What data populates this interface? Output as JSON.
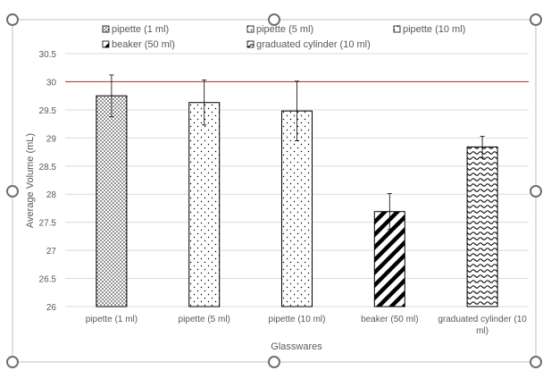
{
  "chart_data": {
    "type": "bar",
    "xlabel": "Glasswares",
    "ylabel": "Average Volume (mL)",
    "categories": [
      "pipette (1 ml)",
      "pipette (5 ml)",
      "pipette (10 ml)",
      "beaker (50 ml)",
      "graduated cylinder (10 ml)"
    ],
    "category_tick_labels": [
      [
        "pipette (1 ml)"
      ],
      [
        "pipette (5 ml)"
      ],
      [
        "pipette (10 ml)"
      ],
      [
        "beaker (50 ml)"
      ],
      [
        "graduated cylinder (10",
        "ml)"
      ]
    ],
    "values": [
      29.75,
      29.63,
      29.48,
      27.69,
      28.84
    ],
    "error_bars": [
      0.37,
      0.4,
      0.53,
      0.32,
      0.19
    ],
    "patterns": [
      "dense-dots",
      "sparse-dots",
      "sparse-dots",
      "diagonal-stripes",
      "waves"
    ],
    "reference_line": {
      "value": 30,
      "color": "#e0302f"
    },
    "ylim": [
      26,
      30.5
    ],
    "yticks": [
      "26",
      "26.5",
      "27",
      "27.5",
      "28",
      "28.5",
      "29",
      "29.5",
      "30",
      "30.5"
    ],
    "grid": true,
    "legend_position": "top",
    "legend": [
      {
        "label": "pipette (1 ml)",
        "pattern": "dense-dots"
      },
      {
        "label": "pipette (5 ml)",
        "pattern": "sparse-dots"
      },
      {
        "label": "pipette (10 ml)",
        "pattern": "sparse-dots"
      },
      {
        "label": "beaker (50 ml)",
        "pattern": "diagonal-stripes"
      },
      {
        "label": "graduated cylinder (10 ml)",
        "pattern": "waves"
      }
    ],
    "colors": {
      "bar_outline": "#000000",
      "gridline": "#d9d9d9",
      "text": "#595959",
      "frame": "#bfbfbf",
      "handle": "#6f6f6f"
    }
  }
}
